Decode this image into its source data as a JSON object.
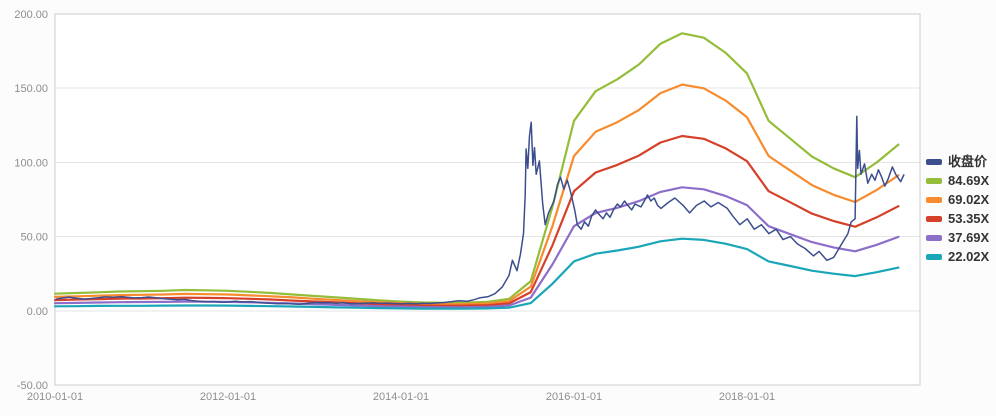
{
  "chart_data": {
    "type": "line",
    "title": "",
    "grid": "horizontal",
    "legend_position": "right",
    "x_axis": {
      "range": [
        "2010-01-01",
        "2020-01-01"
      ],
      "ticks": [
        "2010-01-01",
        "2012-01-01",
        "2014-01-01",
        "2016-01-01",
        "2018-01-01"
      ]
    },
    "y_axis": {
      "range": [
        -50,
        200
      ],
      "ticks": [
        -50,
        0,
        50,
        100,
        150,
        200
      ],
      "tick_labels": [
        "-50.00",
        "0.00",
        "50.00",
        "100.00",
        "150.00",
        "200.00"
      ]
    },
    "close": {
      "name": "收盘价",
      "color": "#3c4e8e",
      "points": [
        [
          "2010-01-04",
          7.8
        ],
        [
          "2010-02-01",
          8.6
        ],
        [
          "2010-03-01",
          9.2
        ],
        [
          "2010-04-01",
          8.4
        ],
        [
          "2010-05-03",
          7.9
        ],
        [
          "2010-06-01",
          8.3
        ],
        [
          "2010-07-01",
          8.8
        ],
        [
          "2010-08-02",
          9.4
        ],
        [
          "2010-09-01",
          9.0
        ],
        [
          "2010-10-08",
          9.6
        ],
        [
          "2010-11-01",
          9.1
        ],
        [
          "2010-12-01",
          8.7
        ],
        [
          "2011-01-04",
          8.9
        ],
        [
          "2011-02-01",
          9.3
        ],
        [
          "2011-03-01",
          8.8
        ],
        [
          "2011-04-01",
          8.2
        ],
        [
          "2011-05-03",
          7.8
        ],
        [
          "2011-06-01",
          7.4
        ],
        [
          "2011-07-01",
          7.7
        ],
        [
          "2011-08-01",
          6.9
        ],
        [
          "2011-09-01",
          6.4
        ],
        [
          "2011-10-10",
          6.0
        ],
        [
          "2011-11-01",
          6.3
        ],
        [
          "2011-12-01",
          5.7
        ],
        [
          "2012-01-04",
          5.9
        ],
        [
          "2012-02-01",
          6.4
        ],
        [
          "2012-03-01",
          6.0
        ],
        [
          "2012-04-05",
          6.2
        ],
        [
          "2012-05-02",
          5.8
        ],
        [
          "2012-06-01",
          5.3
        ],
        [
          "2012-07-02",
          5.0
        ],
        [
          "2012-08-01",
          4.7
        ],
        [
          "2012-09-03",
          4.9
        ],
        [
          "2012-10-08",
          4.6
        ],
        [
          "2012-11-01",
          4.4
        ],
        [
          "2012-12-03",
          5.1
        ],
        [
          "2013-01-04",
          5.6
        ],
        [
          "2013-02-01",
          5.3
        ],
        [
          "2013-03-01",
          5.5
        ],
        [
          "2013-04-01",
          5.1
        ],
        [
          "2013-05-02",
          5.4
        ],
        [
          "2013-06-03",
          4.7
        ],
        [
          "2013-07-01",
          4.9
        ],
        [
          "2013-08-01",
          5.1
        ],
        [
          "2013-09-02",
          5.3
        ],
        [
          "2013-10-08",
          5.0
        ],
        [
          "2013-11-01",
          5.2
        ],
        [
          "2013-12-02",
          4.9
        ],
        [
          "2014-01-02",
          4.7
        ],
        [
          "2014-02-07",
          5.0
        ],
        [
          "2014-03-03",
          4.8
        ],
        [
          "2014-04-01",
          5.1
        ],
        [
          "2014-05-05",
          5.0
        ],
        [
          "2014-06-03",
          5.3
        ],
        [
          "2014-07-01",
          5.6
        ],
        [
          "2014-08-01",
          6.2
        ],
        [
          "2014-09-01",
          6.8
        ],
        [
          "2014-10-08",
          6.5
        ],
        [
          "2014-11-03",
          7.4
        ],
        [
          "2014-12-01",
          8.8
        ],
        [
          "2015-01-05",
          9.6
        ],
        [
          "2015-02-02",
          11.5
        ],
        [
          "2015-03-02",
          16
        ],
        [
          "2015-04-01",
          24
        ],
        [
          "2015-04-15",
          34
        ],
        [
          "2015-05-04",
          27
        ],
        [
          "2015-05-18",
          38
        ],
        [
          "2015-06-01",
          52
        ],
        [
          "2015-06-08",
          78
        ],
        [
          "2015-06-12",
          109
        ],
        [
          "2015-06-19",
          96
        ],
        [
          "2015-06-26",
          118
        ],
        [
          "2015-07-03",
          127
        ],
        [
          "2015-07-10",
          98
        ],
        [
          "2015-07-17",
          110
        ],
        [
          "2015-07-24",
          92
        ],
        [
          "2015-08-07",
          101
        ],
        [
          "2015-08-21",
          72
        ],
        [
          "2015-09-01",
          58
        ],
        [
          "2015-09-15",
          66
        ],
        [
          "2015-10-08",
          74
        ],
        [
          "2015-10-22",
          85
        ],
        [
          "2015-11-05",
          90
        ],
        [
          "2015-11-19",
          82
        ],
        [
          "2015-12-03",
          88
        ],
        [
          "2015-12-17",
          80
        ],
        [
          "2016-01-04",
          68
        ],
        [
          "2016-01-15",
          58
        ],
        [
          "2016-02-01",
          55
        ],
        [
          "2016-02-15",
          60
        ],
        [
          "2016-03-01",
          57
        ],
        [
          "2016-03-15",
          64
        ],
        [
          "2016-04-01",
          68
        ],
        [
          "2016-04-15",
          65
        ],
        [
          "2016-05-02",
          62
        ],
        [
          "2016-05-16",
          66
        ],
        [
          "2016-06-01",
          63
        ],
        [
          "2016-06-15",
          68
        ],
        [
          "2016-07-01",
          72
        ],
        [
          "2016-07-15",
          70
        ],
        [
          "2016-08-01",
          74
        ],
        [
          "2016-08-15",
          71
        ],
        [
          "2016-09-01",
          68
        ],
        [
          "2016-09-15",
          72
        ],
        [
          "2016-10-10",
          70
        ],
        [
          "2016-10-24",
          74
        ],
        [
          "2016-11-07",
          78
        ],
        [
          "2016-11-21",
          74
        ],
        [
          "2016-12-05",
          76
        ],
        [
          "2016-12-19",
          71
        ],
        [
          "2017-01-03",
          69
        ],
        [
          "2017-02-03",
          73
        ],
        [
          "2017-03-01",
          76
        ],
        [
          "2017-04-05",
          71
        ],
        [
          "2017-05-02",
          66
        ],
        [
          "2017-06-01",
          71
        ],
        [
          "2017-07-03",
          74
        ],
        [
          "2017-08-01",
          70
        ],
        [
          "2017-09-01",
          73
        ],
        [
          "2017-10-09",
          69
        ],
        [
          "2017-11-01",
          64
        ],
        [
          "2017-12-01",
          58
        ],
        [
          "2018-01-02",
          62
        ],
        [
          "2018-02-01",
          55
        ],
        [
          "2018-03-01",
          58
        ],
        [
          "2018-04-02",
          52
        ],
        [
          "2018-05-02",
          55
        ],
        [
          "2018-06-01",
          48
        ],
        [
          "2018-07-02",
          50
        ],
        [
          "2018-08-01",
          45
        ],
        [
          "2018-09-03",
          42
        ],
        [
          "2018-10-08",
          37
        ],
        [
          "2018-11-01",
          40
        ],
        [
          "2018-12-03",
          34
        ],
        [
          "2019-01-02",
          36
        ],
        [
          "2019-02-01",
          44
        ],
        [
          "2019-03-01",
          52
        ],
        [
          "2019-03-15",
          60
        ],
        [
          "2019-04-01",
          62
        ],
        [
          "2019-04-08",
          131
        ],
        [
          "2019-04-12",
          96
        ],
        [
          "2019-04-19",
          108
        ],
        [
          "2019-04-26",
          92
        ],
        [
          "2019-05-10",
          99
        ],
        [
          "2019-05-24",
          86
        ],
        [
          "2019-06-10",
          92
        ],
        [
          "2019-06-24",
          88
        ],
        [
          "2019-07-08",
          95
        ],
        [
          "2019-07-22",
          90
        ],
        [
          "2019-08-05",
          84
        ],
        [
          "2019-08-19",
          89
        ],
        [
          "2019-09-06",
          97
        ],
        [
          "2019-09-20",
          92
        ],
        [
          "2019-10-11",
          87
        ],
        [
          "2019-10-25",
          92
        ]
      ]
    },
    "bands": {
      "dates": [
        "2010-01-01",
        "2010-04-01",
        "2010-07-01",
        "2010-10-01",
        "2011-01-01",
        "2011-04-01",
        "2011-07-01",
        "2011-10-01",
        "2012-01-01",
        "2012-04-01",
        "2012-07-01",
        "2012-10-01",
        "2013-01-01",
        "2013-04-01",
        "2013-07-01",
        "2013-10-01",
        "2014-01-01",
        "2014-04-01",
        "2014-07-01",
        "2014-10-01",
        "2015-01-01",
        "2015-04-01",
        "2015-07-01",
        "2015-10-01",
        "2016-01-01",
        "2016-04-01",
        "2016-07-01",
        "2016-10-01",
        "2017-01-01",
        "2017-04-01",
        "2017-07-01",
        "2017-10-01",
        "2018-01-01",
        "2018-04-01",
        "2018-07-01",
        "2018-10-01",
        "2019-01-01",
        "2019-04-01",
        "2019-07-01",
        "2019-10-01"
      ],
      "series": [
        {
          "name": "84.69X",
          "multiple": 84.69,
          "color": "#94bd3a",
          "values": [
            11.5,
            12,
            12.5,
            13,
            13.2,
            13.5,
            14,
            13.8,
            13.5,
            12.8,
            12,
            11,
            10,
            9,
            8,
            7,
            6.2,
            5.6,
            5.4,
            5.5,
            6,
            8,
            20,
            70,
            128,
            148,
            156,
            166,
            180,
            187,
            184,
            174,
            160,
            128,
            116,
            104,
            96,
            90,
            100,
            112
          ]
        },
        {
          "name": "69.02X",
          "multiple": 69.02,
          "color": "#f78b2d",
          "values": [
            9.4,
            9.8,
            10.2,
            10.6,
            10.8,
            11,
            11.4,
            11.2,
            11,
            10.4,
            9.8,
            9,
            8.1,
            7.3,
            6.5,
            5.7,
            5.1,
            4.6,
            4.4,
            4.5,
            4.9,
            6.5,
            16.3,
            57,
            104.3,
            120.6,
            127.1,
            135.3,
            146.7,
            152.4,
            149.9,
            141.8,
            130.4,
            104.3,
            94.5,
            84.7,
            78.2,
            73.3,
            81.5,
            91.3
          ]
        },
        {
          "name": "53.35X",
          "multiple": 53.35,
          "color": "#d54028",
          "values": [
            7.2,
            7.6,
            7.9,
            8.2,
            8.3,
            8.5,
            8.8,
            8.7,
            8.5,
            8.1,
            7.6,
            6.9,
            6.3,
            5.7,
            5,
            4.4,
            3.9,
            3.5,
            3.4,
            3.5,
            3.8,
            5,
            12.6,
            44.1,
            80.6,
            93.2,
            98.3,
            104.6,
            113.4,
            117.8,
            115.9,
            109.6,
            100.8,
            80.6,
            73.1,
            65.5,
            60.5,
            56.7,
            63,
            70.5
          ]
        },
        {
          "name": "37.69X",
          "multiple": 37.69,
          "color": "#8d6ec8",
          "values": [
            5.1,
            5.3,
            5.6,
            5.8,
            5.9,
            6,
            6.2,
            6.1,
            6,
            5.7,
            5.3,
            4.9,
            4.5,
            4,
            3.6,
            3.1,
            2.8,
            2.5,
            2.4,
            2.4,
            2.7,
            3.6,
            8.9,
            31.2,
            57,
            65.9,
            69.4,
            73.9,
            80.1,
            83.2,
            81.9,
            77.4,
            71.2,
            57,
            51.6,
            46.3,
            42.7,
            40.1,
            44.5,
            49.8
          ]
        },
        {
          "name": "22.02X",
          "multiple": 22.02,
          "color": "#1aa6b8",
          "values": [
            3,
            3.1,
            3.3,
            3.4,
            3.4,
            3.5,
            3.6,
            3.6,
            3.5,
            3.3,
            3.1,
            2.9,
            2.6,
            2.3,
            2.1,
            1.8,
            1.6,
            1.5,
            1.4,
            1.4,
            1.6,
            2.1,
            5.2,
            18.2,
            33.3,
            38.5,
            40.6,
            43.2,
            46.8,
            48.6,
            47.8,
            45.2,
            41.6,
            33.3,
            30.2,
            27,
            25,
            23.4,
            26,
            29.1
          ]
        }
      ]
    },
    "legend_items": [
      {
        "name": "legend-item-close-price",
        "label": "收盘价",
        "color": "#3c4e8e"
      },
      {
        "name": "legend-item-84-69x",
        "label": "84.69X",
        "color": "#94bd3a"
      },
      {
        "name": "legend-item-69-02x",
        "label": "69.02X",
        "color": "#f78b2d"
      },
      {
        "name": "legend-item-53-35x",
        "label": "53.35X",
        "color": "#d54028"
      },
      {
        "name": "legend-item-37-69x",
        "label": "37.69X",
        "color": "#8d6ec8"
      },
      {
        "name": "legend-item-22-02x",
        "label": "22.02X",
        "color": "#1aa6b8"
      }
    ],
    "style_colors": {
      "grid_line": "#e4e4e4",
      "plot_border": "#cccccc",
      "axis_text": "#8e8e8e",
      "plot_background": "#ffffff"
    }
  }
}
